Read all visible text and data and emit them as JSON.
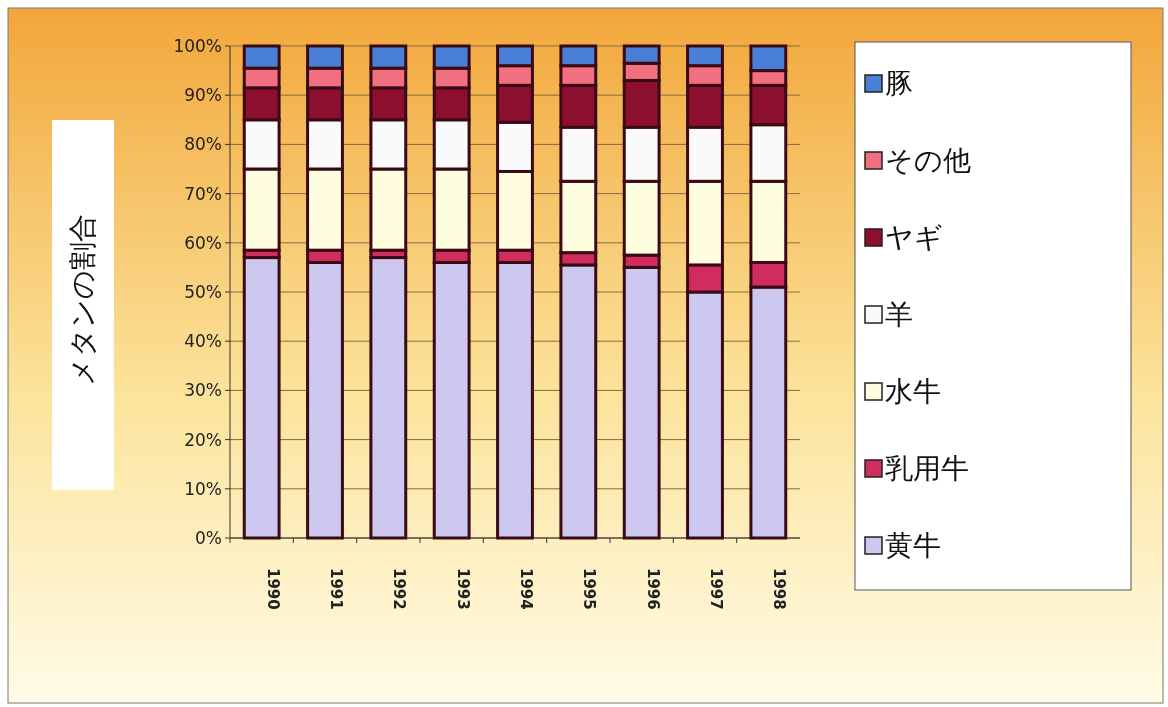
{
  "chart_data": {
    "type": "bar",
    "stacked": true,
    "ylabel": "メタンの割合",
    "categories": [
      "1990",
      "1991",
      "1992",
      "1993",
      "1994",
      "1995",
      "1996",
      "1997",
      "1998"
    ],
    "series": [
      {
        "name": "黄牛",
        "color": "#ccc8f0",
        "values": [
          57,
          56,
          57,
          56,
          56,
          55.5,
          55,
          50,
          51
        ]
      },
      {
        "name": "乳用牛",
        "color": "#d02c60",
        "values": [
          1.5,
          2.5,
          1.5,
          2.5,
          2.5,
          2.5,
          2.5,
          5.5,
          5
        ]
      },
      {
        "name": "水牛",
        "color": "#fffde0",
        "values": [
          16.5,
          16.5,
          16.5,
          16.5,
          16,
          14.5,
          15,
          17,
          16.5
        ]
      },
      {
        "name": "羊",
        "color": "#fafafa",
        "values": [
          10,
          10,
          10,
          10,
          10,
          11,
          11,
          11,
          11.5
        ]
      },
      {
        "name": "ヤギ",
        "color": "#8c0f30",
        "values": [
          6.5,
          6.5,
          6.5,
          6.5,
          7.5,
          8.5,
          9.5,
          8.5,
          8
        ]
      },
      {
        "name": "その他",
        "color": "#f07080",
        "values": [
          4,
          4,
          4,
          4,
          4,
          4,
          3.5,
          4,
          3
        ]
      },
      {
        "name": "豚",
        "color": "#4a7fd8",
        "values": [
          4.5,
          4.5,
          4.5,
          4.5,
          4,
          4,
          3.5,
          4,
          5
        ]
      }
    ],
    "ylim": [
      0,
      100
    ],
    "yticks": [
      {
        "value": 0,
        "label": "0%"
      },
      {
        "value": 10,
        "label": "10%"
      },
      {
        "value": 20,
        "label": "20%"
      },
      {
        "value": 30,
        "label": "30%"
      },
      {
        "value": 40,
        "label": "40%"
      },
      {
        "value": 50,
        "label": "50%"
      },
      {
        "value": 60,
        "label": "60%"
      },
      {
        "value": 70,
        "label": "70%"
      },
      {
        "value": 80,
        "label": "80%"
      },
      {
        "value": 90,
        "label": "90%"
      },
      {
        "value": 100,
        "label": "100%"
      }
    ],
    "grid": "y",
    "legend": "right"
  }
}
